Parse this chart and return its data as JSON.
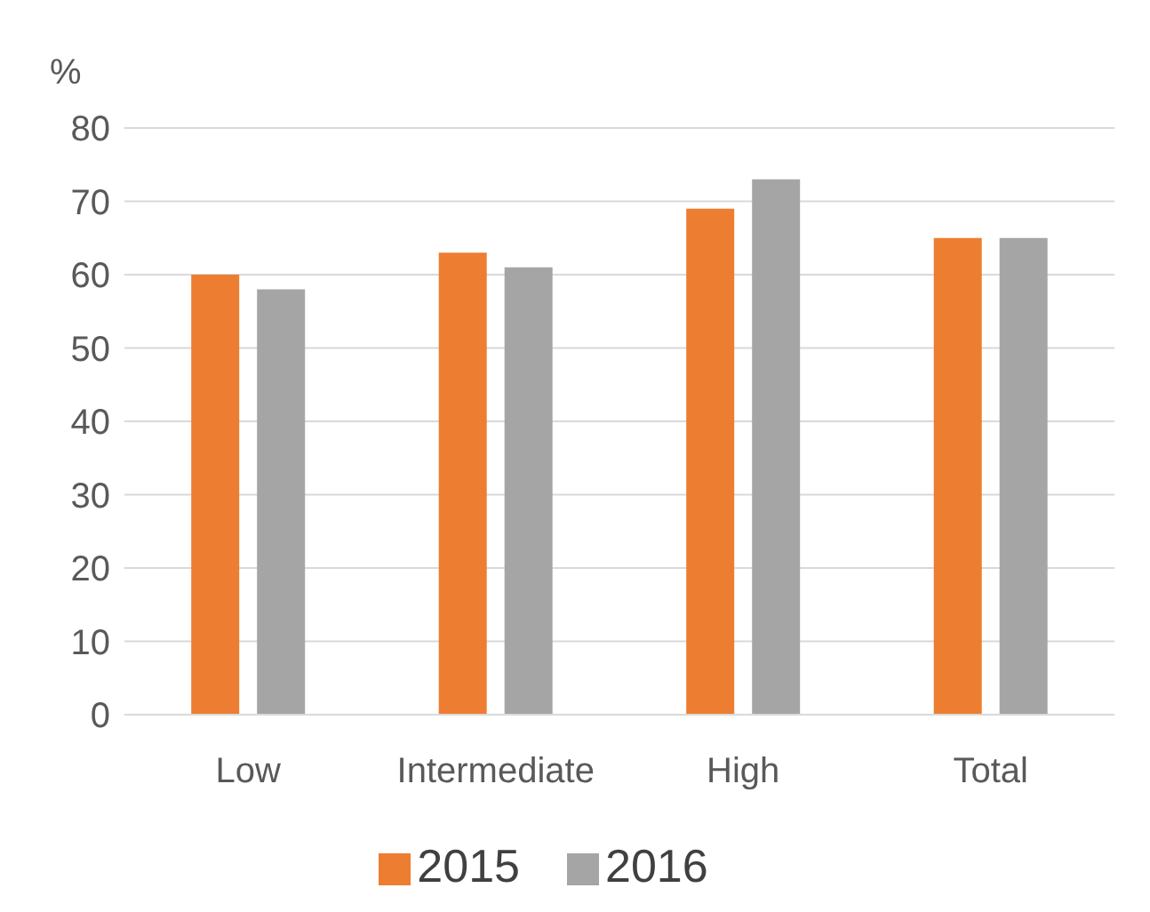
{
  "chart_data": {
    "type": "bar",
    "ylabel": "%",
    "categories": [
      "Low",
      "Intermediate",
      "High",
      "Total"
    ],
    "series": [
      {
        "name": "2015",
        "color": "#ed7d31",
        "values": [
          60,
          63,
          69,
          65
        ]
      },
      {
        "name": "2016",
        "color": "#a5a5a5",
        "values": [
          58,
          61,
          73,
          65
        ]
      }
    ],
    "ylim": [
      0,
      80
    ],
    "yticks": [
      0,
      10,
      20,
      30,
      40,
      50,
      60,
      70,
      80
    ],
    "grid": "y",
    "legend": "bottom"
  }
}
